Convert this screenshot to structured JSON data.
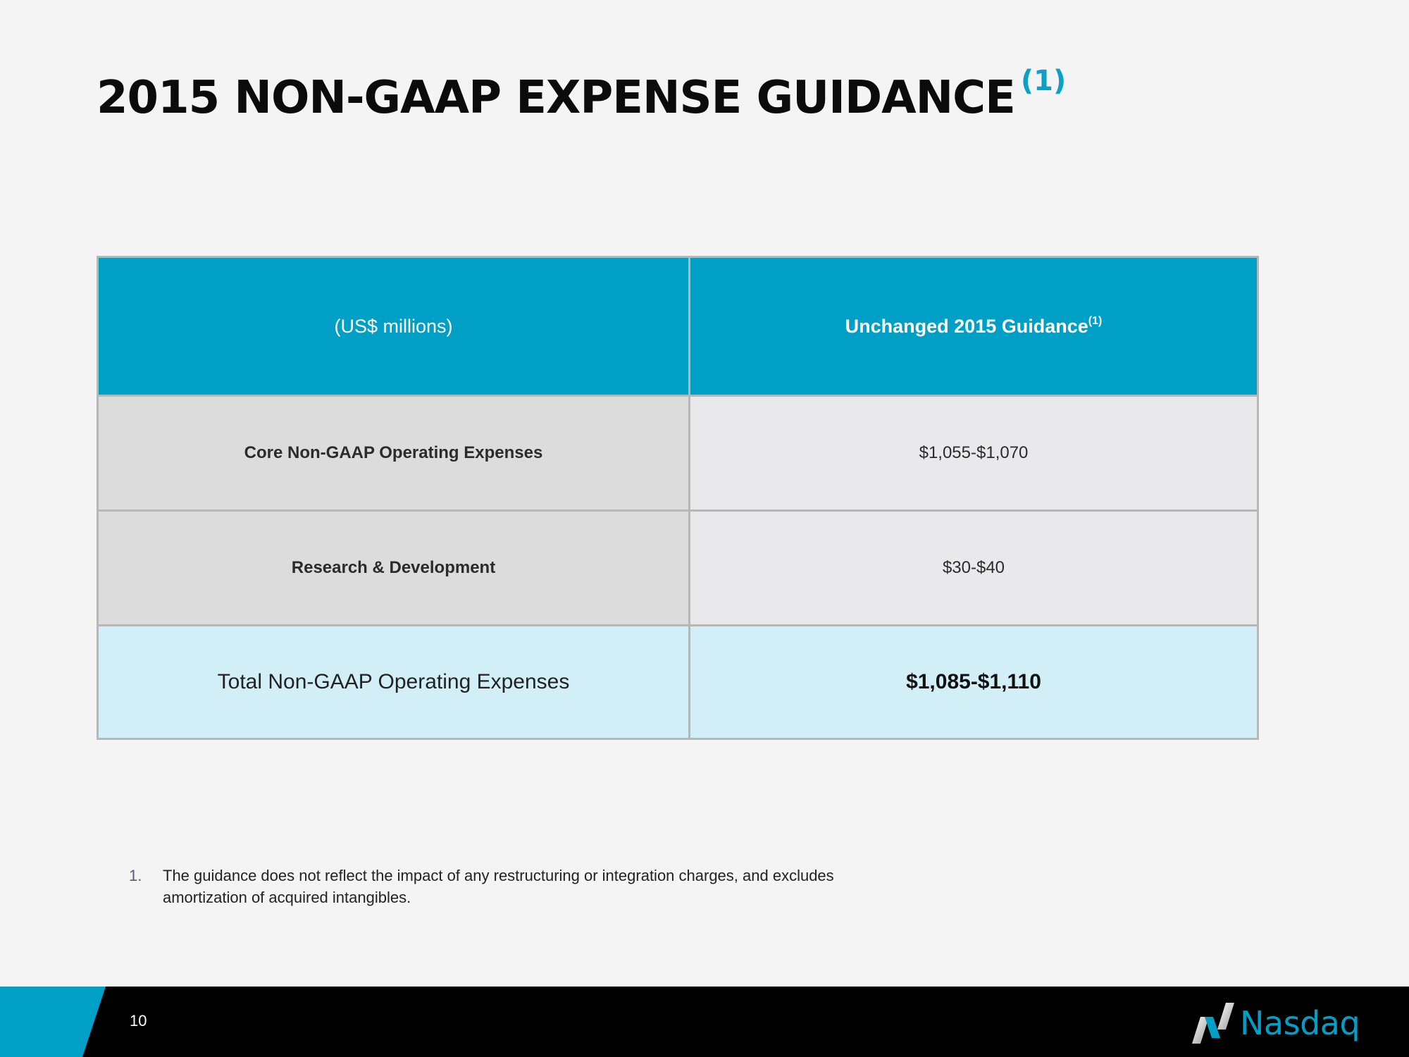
{
  "slide": {
    "title": "2015 NON-GAAP EXPENSE GUIDANCE",
    "title_footnote_marker": "(1)"
  },
  "table": {
    "header": {
      "units_label": "(US$ millions)",
      "guidance_label": "Unchanged 2015 Guidance",
      "guidance_footnote_marker": "(1)"
    },
    "rows": [
      {
        "label": "Core Non-GAAP Operating Expenses",
        "value": "$1,055-$1,070"
      },
      {
        "label": "Research & Development",
        "value": "$30-$40"
      }
    ],
    "total": {
      "label": "Total Non-GAAP Operating Expenses",
      "value": "$1,085-$1,110"
    }
  },
  "footnotes": [
    {
      "number": "1.",
      "text": "The guidance does not reflect the impact of any restructuring or integration charges, and excludes amortization of acquired intangibles."
    }
  ],
  "footer": {
    "page_number": "10",
    "logo_text": "Nasdaq"
  },
  "colors": {
    "accent": "#00a0c6",
    "header_fill": "#00a0c6",
    "total_row_fill": "#d2eef6",
    "footer_bar": "#000000"
  },
  "icons": [
    "nasdaq-logo-icon"
  ]
}
